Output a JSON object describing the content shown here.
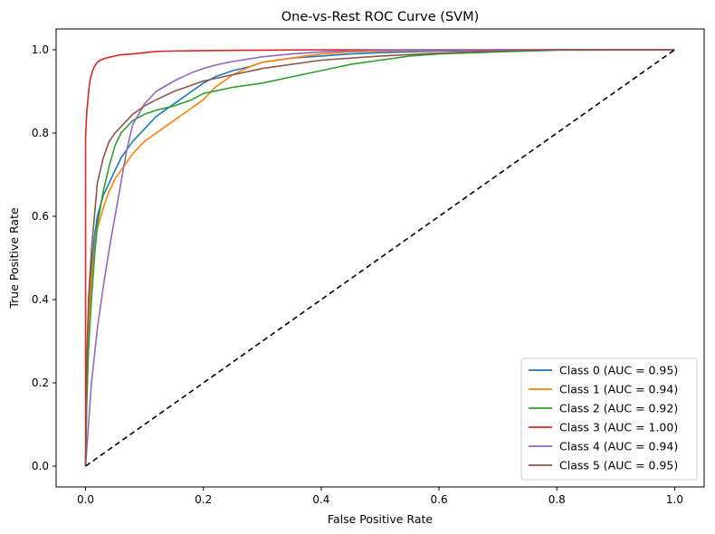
{
  "chart_data": {
    "type": "line",
    "title": "One-vs-Rest ROC Curve (SVM)",
    "xlabel": "False Positive Rate",
    "ylabel": "True Positive Rate",
    "xlim": [
      -0.05,
      1.05
    ],
    "ylim": [
      -0.05,
      1.05
    ],
    "xticks": [
      "0.0",
      "0.2",
      "0.4",
      "0.6",
      "0.8",
      "1.0"
    ],
    "yticks": [
      "0.0",
      "0.2",
      "0.4",
      "0.6",
      "0.8",
      "1.0"
    ],
    "grid": false,
    "legend_position": "lower-right",
    "series": [
      {
        "name": "Class 0 (AUC = 0.95)",
        "color": "#1f77b4",
        "x": [
          0,
          0.002,
          0.005,
          0.01,
          0.015,
          0.02,
          0.03,
          0.04,
          0.05,
          0.06,
          0.07,
          0.08,
          0.1,
          0.12,
          0.15,
          0.18,
          0.2,
          0.22,
          0.25,
          0.28,
          0.3,
          0.35,
          0.4,
          0.45,
          0.5,
          0.55,
          0.6,
          0.7,
          0.8,
          1.0
        ],
        "y": [
          0,
          0.2,
          0.35,
          0.48,
          0.55,
          0.6,
          0.65,
          0.68,
          0.71,
          0.74,
          0.76,
          0.78,
          0.81,
          0.84,
          0.87,
          0.9,
          0.92,
          0.935,
          0.95,
          0.96,
          0.97,
          0.98,
          0.985,
          0.99,
          0.993,
          0.995,
          0.997,
          0.999,
          1.0,
          1.0
        ]
      },
      {
        "name": "Class 1 (AUC = 0.94)",
        "color": "#ff7f0e",
        "x": [
          0,
          0.002,
          0.005,
          0.01,
          0.015,
          0.02,
          0.03,
          0.04,
          0.05,
          0.06,
          0.07,
          0.08,
          0.1,
          0.12,
          0.15,
          0.18,
          0.2,
          0.22,
          0.25,
          0.28,
          0.3,
          0.35,
          0.4,
          0.45,
          0.5,
          0.6,
          0.7,
          0.8,
          1.0
        ],
        "y": [
          0,
          0.2,
          0.33,
          0.45,
          0.52,
          0.57,
          0.62,
          0.66,
          0.69,
          0.71,
          0.73,
          0.75,
          0.78,
          0.8,
          0.83,
          0.86,
          0.88,
          0.91,
          0.94,
          0.96,
          0.97,
          0.98,
          0.99,
          0.995,
          0.997,
          0.999,
          1.0,
          1.0,
          1.0
        ]
      },
      {
        "name": "Class 2 (AUC = 0.92)",
        "color": "#2ca02c",
        "x": [
          0,
          0.002,
          0.005,
          0.01,
          0.015,
          0.02,
          0.03,
          0.04,
          0.05,
          0.06,
          0.08,
          0.1,
          0.12,
          0.15,
          0.18,
          0.2,
          0.25,
          0.3,
          0.35,
          0.4,
          0.45,
          0.5,
          0.55,
          0.6,
          0.7,
          0.8,
          1.0
        ],
        "y": [
          0,
          0.15,
          0.28,
          0.4,
          0.5,
          0.58,
          0.66,
          0.72,
          0.77,
          0.8,
          0.83,
          0.845,
          0.855,
          0.865,
          0.88,
          0.895,
          0.91,
          0.92,
          0.935,
          0.95,
          0.965,
          0.975,
          0.985,
          0.99,
          0.995,
          0.999,
          1.0
        ]
      },
      {
        "name": "Class 3 (AUC = 1.00)",
        "color": "#d62728",
        "x": [
          0,
          0.0,
          0.002,
          0.004,
          0.006,
          0.008,
          0.01,
          0.012,
          0.015,
          0.02,
          0.025,
          0.03,
          0.04,
          0.05,
          0.06,
          0.08,
          0.1,
          0.12,
          0.15,
          0.2,
          0.3,
          0.4,
          0.6,
          0.8,
          1.0
        ],
        "y": [
          0,
          0.79,
          0.85,
          0.88,
          0.91,
          0.93,
          0.94,
          0.95,
          0.96,
          0.97,
          0.975,
          0.978,
          0.982,
          0.985,
          0.988,
          0.99,
          0.993,
          0.996,
          0.997,
          0.998,
          0.999,
          1.0,
          1.0,
          1.0,
          1.0
        ]
      },
      {
        "name": "Class 4 (AUC = 0.94)",
        "color": "#9467bd",
        "x": [
          0,
          0.005,
          0.01,
          0.02,
          0.03,
          0.04,
          0.05,
          0.06,
          0.07,
          0.08,
          0.1,
          0.12,
          0.15,
          0.18,
          0.2,
          0.22,
          0.25,
          0.3,
          0.35,
          0.4,
          0.45,
          0.5,
          0.6,
          0.7,
          0.8,
          1.0
        ],
        "y": [
          0,
          0.1,
          0.2,
          0.33,
          0.43,
          0.52,
          0.6,
          0.68,
          0.76,
          0.82,
          0.87,
          0.9,
          0.925,
          0.945,
          0.955,
          0.963,
          0.972,
          0.983,
          0.99,
          0.995,
          0.998,
          0.999,
          1.0,
          1.0,
          1.0,
          1.0
        ]
      },
      {
        "name": "Class 5 (AUC = 0.95)",
        "color": "#8c564b",
        "x": [
          0,
          0.002,
          0.005,
          0.01,
          0.015,
          0.02,
          0.03,
          0.04,
          0.05,
          0.06,
          0.07,
          0.08,
          0.1,
          0.12,
          0.15,
          0.18,
          0.2,
          0.25,
          0.3,
          0.35,
          0.4,
          0.5,
          0.6,
          0.7,
          0.8,
          1.0
        ],
        "y": [
          0,
          0.25,
          0.4,
          0.52,
          0.6,
          0.68,
          0.74,
          0.78,
          0.8,
          0.815,
          0.83,
          0.845,
          0.865,
          0.88,
          0.9,
          0.915,
          0.925,
          0.94,
          0.955,
          0.965,
          0.975,
          0.985,
          0.992,
          0.997,
          1.0,
          1.0
        ]
      },
      {
        "name": "",
        "color": "#000000",
        "dashed": true,
        "x": [
          0,
          1
        ],
        "y": [
          0,
          1
        ]
      }
    ]
  }
}
